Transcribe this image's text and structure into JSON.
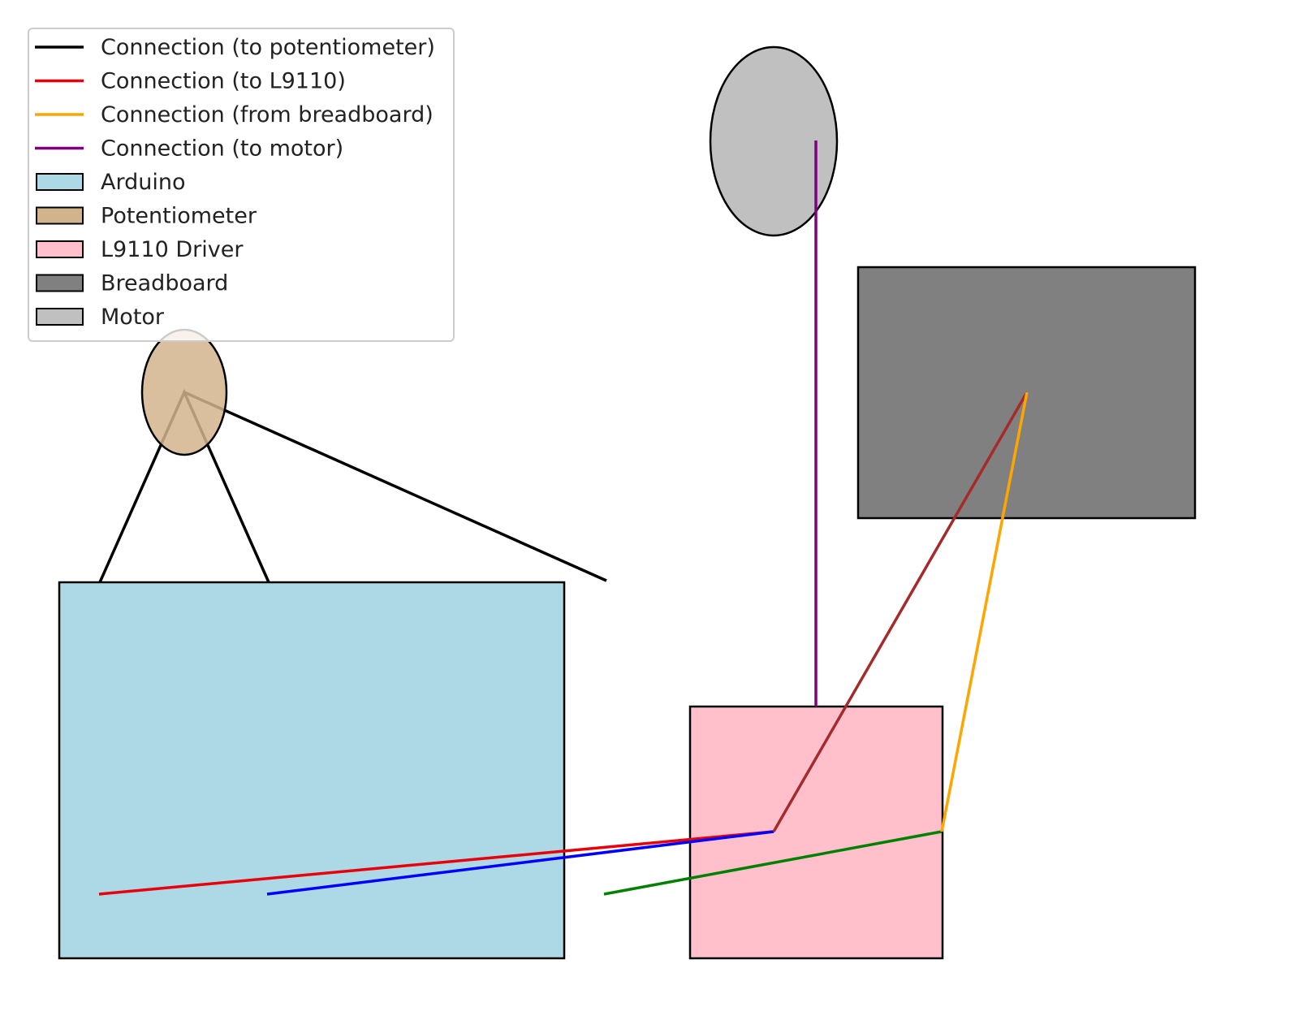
{
  "legend": {
    "items": [
      {
        "label": "Connection (to potentiometer)",
        "kind": "line",
        "color": "#000000"
      },
      {
        "label": "Connection (to L9110)",
        "kind": "line",
        "color": "#e8000b"
      },
      {
        "label": "Connection (from breadboard)",
        "kind": "line",
        "color": "#ffa500"
      },
      {
        "label": "Connection (to motor)",
        "kind": "line",
        "color": "#800080"
      },
      {
        "label": "Arduino",
        "kind": "patch",
        "color": "#add8e6"
      },
      {
        "label": "Potentiometer",
        "kind": "patch",
        "color": "#d2b48c"
      },
      {
        "label": "L9110 Driver",
        "kind": "patch",
        "color": "#ffc0cb"
      },
      {
        "label": "Breadboard",
        "kind": "patch",
        "color": "#808080"
      },
      {
        "label": "Motor",
        "kind": "patch",
        "color": "#c0c0c0"
      }
    ]
  },
  "components": {
    "arduino": {
      "color": "#add8e6"
    },
    "potentiometer": {
      "color": "#d2b48c"
    },
    "l9110": {
      "color": "#ffc0cb"
    },
    "breadboard": {
      "color": "#808080"
    },
    "motor": {
      "color": "#c0c0c0"
    }
  },
  "wire_colors": {
    "potentiometer": "#000000",
    "to_l9110_red": "#e8000b",
    "to_l9110_blue": "#0000ff",
    "green": "#008000",
    "from_breadboard_orange": "#ffa500",
    "from_breadboard_brown": "#a52a2a",
    "to_motor": "#800080"
  }
}
